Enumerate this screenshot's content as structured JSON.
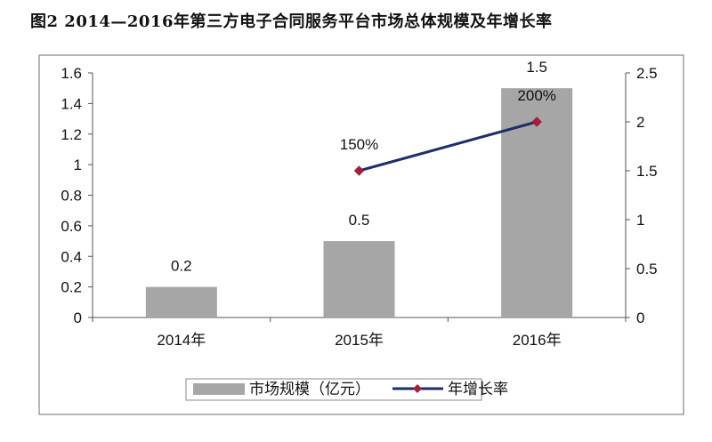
{
  "figure": {
    "title": "图2   2014—2016年第三方电子合同服务平台市场总体规模及年增长率"
  },
  "chart_data": {
    "type": "bar",
    "categories": [
      "2014年",
      "2015年",
      "2016年"
    ],
    "series": [
      {
        "name": "市场规模（亿元）",
        "kind": "bar",
        "axis": "left",
        "values": [
          0.2,
          0.5,
          1.5
        ],
        "labels": [
          "0.2",
          "0.5",
          "1.5"
        ],
        "color": "#a6a6a6"
      },
      {
        "name": "年增长率",
        "kind": "line",
        "axis": "right",
        "values": [
          null,
          1.5,
          2.0
        ],
        "labels": [
          null,
          "150%",
          "200%"
        ],
        "color": "#1f2d6b",
        "marker_color": "#a01f3c"
      }
    ],
    "y_left": {
      "range": [
        0,
        1.6
      ],
      "ticks": [
        "0",
        "0.2",
        "0.4",
        "0.6",
        "0.8",
        "1",
        "1.2",
        "1.4",
        "1.6"
      ]
    },
    "y_right": {
      "range": [
        0,
        2.5
      ],
      "ticks": [
        "0",
        "0.5",
        "1",
        "1.5",
        "2",
        "2.5"
      ]
    },
    "grid": false,
    "legend": "bottom"
  }
}
